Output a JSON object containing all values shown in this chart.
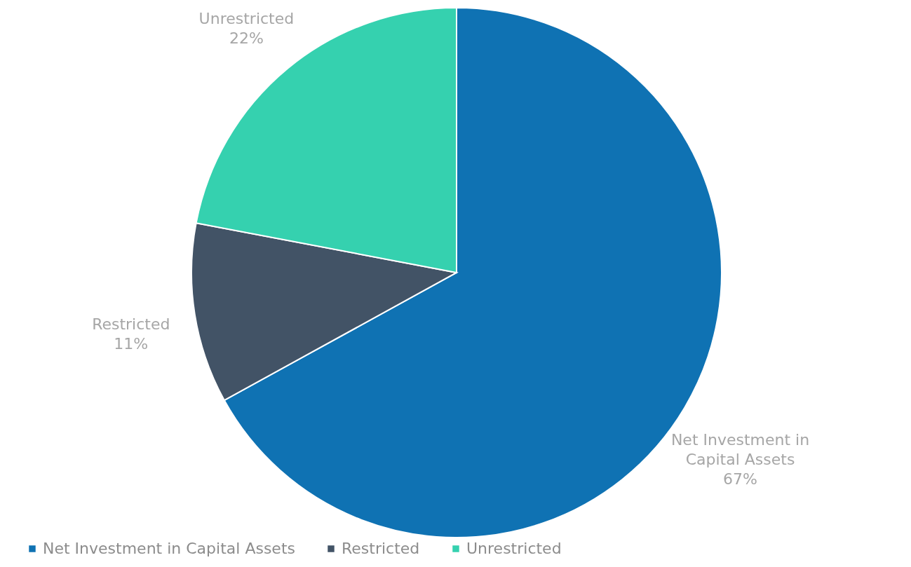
{
  "chart_data": {
    "type": "pie",
    "categories": [
      "Net Investment in Capital Assets",
      "Restricted",
      "Unrestricted"
    ],
    "values": [
      67,
      11,
      22
    ],
    "colors": [
      "#0f72b3",
      "#425366",
      "#35d1af"
    ],
    "value_labels": [
      "67%",
      "11%",
      "22%"
    ],
    "legend": "bottom"
  }
}
